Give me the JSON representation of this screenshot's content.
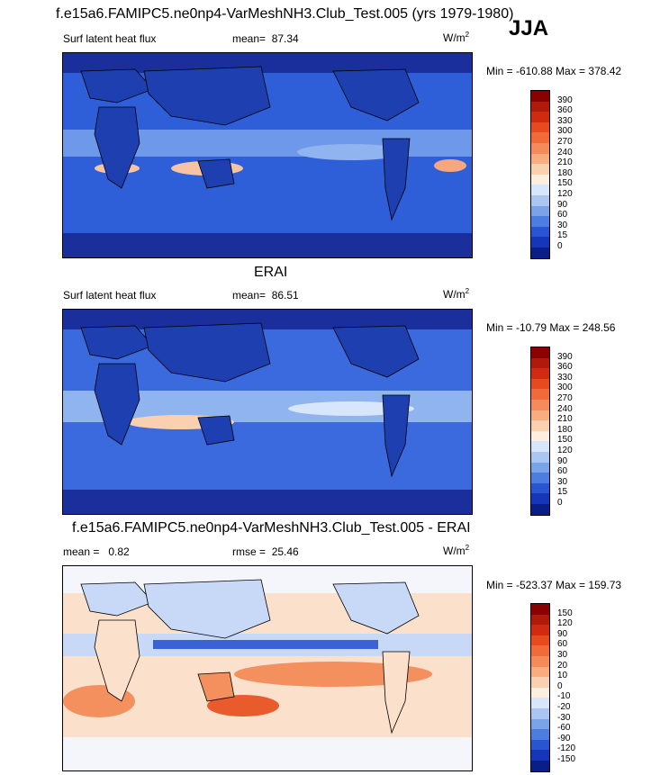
{
  "title_main": "f.e15a6.FAMIPC5.ne0np4-VarMeshNH3.Club_Test.005 (yrs 1979-1980)",
  "season": "JJA",
  "panels": [
    {
      "id": "model",
      "label_left": "Surf latent heat flux",
      "mean_label": "mean=",
      "mean_value": "87.34",
      "units": "W/m",
      "units_sup": "2",
      "minmax": "Min = -610.88 Max = 378.42",
      "colorbar_labels": [
        "390",
        "360",
        "330",
        "300",
        "270",
        "240",
        "210",
        "180",
        "150",
        "120",
        "90",
        "60",
        "30",
        "15",
        "0"
      ],
      "colorbar_colors": [
        "#8b0000",
        "#b01a0a",
        "#d02a10",
        "#e84a20",
        "#f06a3a",
        "#f58a5a",
        "#f8ac80",
        "#fbd0b0",
        "#fdeee0",
        "#d8e6fb",
        "#aac6f3",
        "#7aa3ea",
        "#4d7de0",
        "#2a55d2",
        "#1536b8",
        "#0a1e8a"
      ],
      "map_colors": {
        "ocean_base": "#2f5fd8",
        "ocean_mid": "#4a7ee6",
        "ocean_high": "#8fb4ef",
        "warm": "#f6c3a4",
        "land_low": "#1e3fb0",
        "polar": "#1a2f9c"
      }
    },
    {
      "id": "obs",
      "subtitle": "ERAI",
      "label_left": "Surf latent heat flux",
      "mean_label": "mean=",
      "mean_value": "86.51",
      "units": "W/m",
      "units_sup": "2",
      "minmax": "Min = -10.79 Max = 248.56",
      "colorbar_labels": [
        "390",
        "360",
        "330",
        "300",
        "270",
        "240",
        "210",
        "180",
        "150",
        "120",
        "90",
        "60",
        "30",
        "15",
        "0"
      ],
      "colorbar_colors": [
        "#8b0000",
        "#b01a0a",
        "#d02a10",
        "#e84a20",
        "#f06a3a",
        "#f58a5a",
        "#f8ac80",
        "#fbd0b0",
        "#fdeee0",
        "#d8e6fb",
        "#aac6f3",
        "#7aa3ea",
        "#4d7de0",
        "#2a55d2",
        "#1536b8",
        "#0a1e8a"
      ],
      "map_colors": {
        "ocean_base": "#2f5fd8",
        "ocean_mid": "#4a7ee6",
        "ocean_high": "#8fb4ef",
        "warm": "#f6c3a4",
        "land_low": "#1e3fb0",
        "polar": "#1a2f9c"
      }
    },
    {
      "id": "diff",
      "subtitle": "f.e15a6.FAMIPC5.ne0np4-VarMeshNH3.Club_Test.005 - ERAI",
      "label_left": "mean =",
      "mean_value": "0.82",
      "rmse_label": "rmse =",
      "rmse_value": "25.46",
      "units": "W/m",
      "units_sup": "2",
      "minmax": "Min = -523.37 Max = 159.73",
      "colorbar_labels": [
        "150",
        "120",
        "90",
        "60",
        "30",
        "20",
        "10",
        "0",
        "-10",
        "-20",
        "-30",
        "-60",
        "-90",
        "-120",
        "-150"
      ],
      "colorbar_colors": [
        "#8b0000",
        "#b01a0a",
        "#d02a10",
        "#e84a20",
        "#f06a3a",
        "#f58a5a",
        "#f8ac80",
        "#fbd0b0",
        "#fdeee0",
        "#d8e6fb",
        "#aac6f3",
        "#7aa3ea",
        "#4d7de0",
        "#2a55d2",
        "#1536b8",
        "#0a1e8a"
      ],
      "map_colors": {
        "base": "#fbe0cc",
        "warm": "#f3905e",
        "hot": "#e95a2c",
        "cool": "#c7d9f7",
        "cold": "#3a62d6",
        "white": "#f4f6fb"
      }
    }
  ]
}
